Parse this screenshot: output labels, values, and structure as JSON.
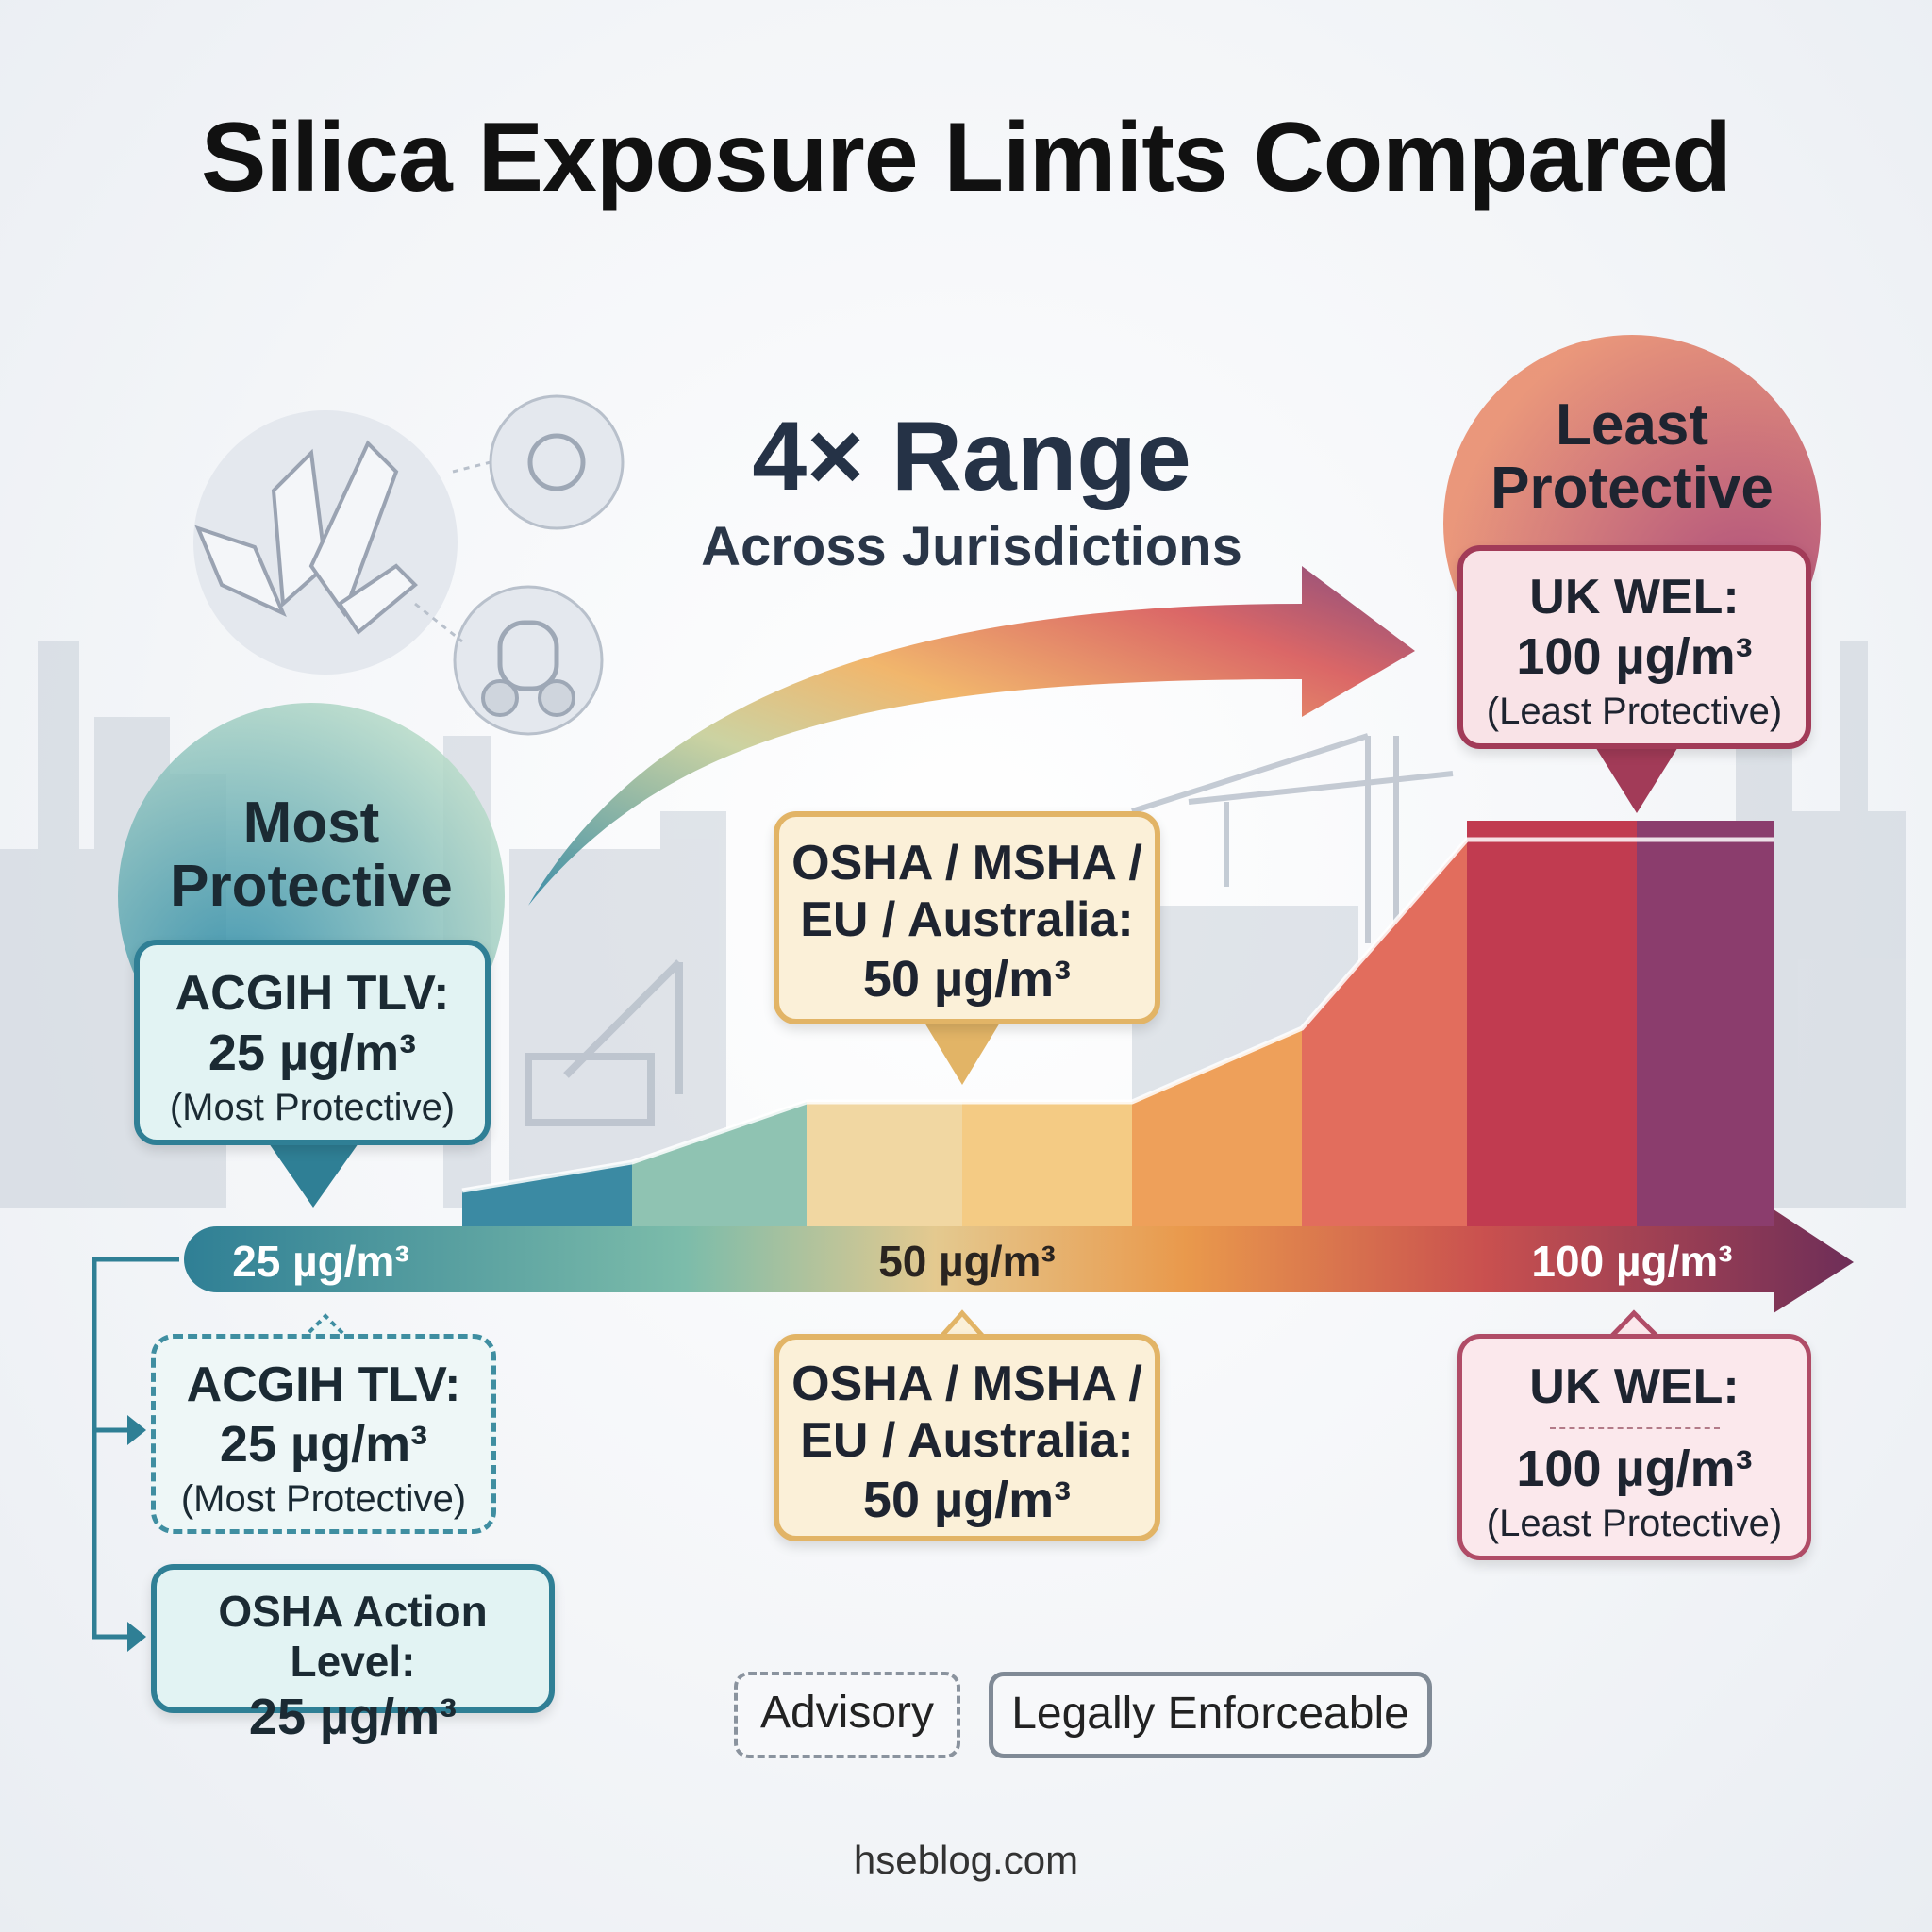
{
  "title": "Silica Exposure Limits Compared",
  "range": {
    "headline": "4× Range",
    "subheadline": "Across Jurisdictions"
  },
  "most_protective": {
    "heading_line1": "Most",
    "heading_line2": "Protective",
    "card": {
      "name": "ACGIH TLV:",
      "value": "25 µg/m³",
      "note": "(Most Protective)"
    }
  },
  "middle": {
    "card": {
      "name_line1": "OSHA / MSHA /",
      "name_line2": "EU / Australia:",
      "value": "50 µg/m³"
    }
  },
  "least_protective": {
    "heading_line1": "Least",
    "heading_line2": "Protective",
    "card": {
      "name": "UK WEL:",
      "value": "100 µg/m³",
      "note": "(Least Protective)"
    }
  },
  "axis": {
    "labels": [
      "25 µg/m³",
      "50 µg/m³",
      "100 µg/m³"
    ]
  },
  "below": {
    "acgih": {
      "name": "ACGIH TLV:",
      "value": "25 µg/m³",
      "note": "(Most Protective)"
    },
    "osha_action": {
      "name": "OSHA Action Level:",
      "value": "25 µg/m³"
    },
    "middle": {
      "name_line1": "OSHA / MSHA /",
      "name_line2": "EU / Australia:",
      "value": "50 µg/m³"
    },
    "uk": {
      "name": "UK WEL:",
      "value": "100 µg/m³",
      "note": "(Least Protective)"
    }
  },
  "legend": {
    "advisory": "Advisory",
    "enforceable": "Legally Enforceable"
  },
  "footer": "hseblog.com",
  "colors": {
    "teal": "#2f7f95",
    "gold": "#e2b466",
    "red": "#c23d4e",
    "plum": "#8a3d6b"
  }
}
